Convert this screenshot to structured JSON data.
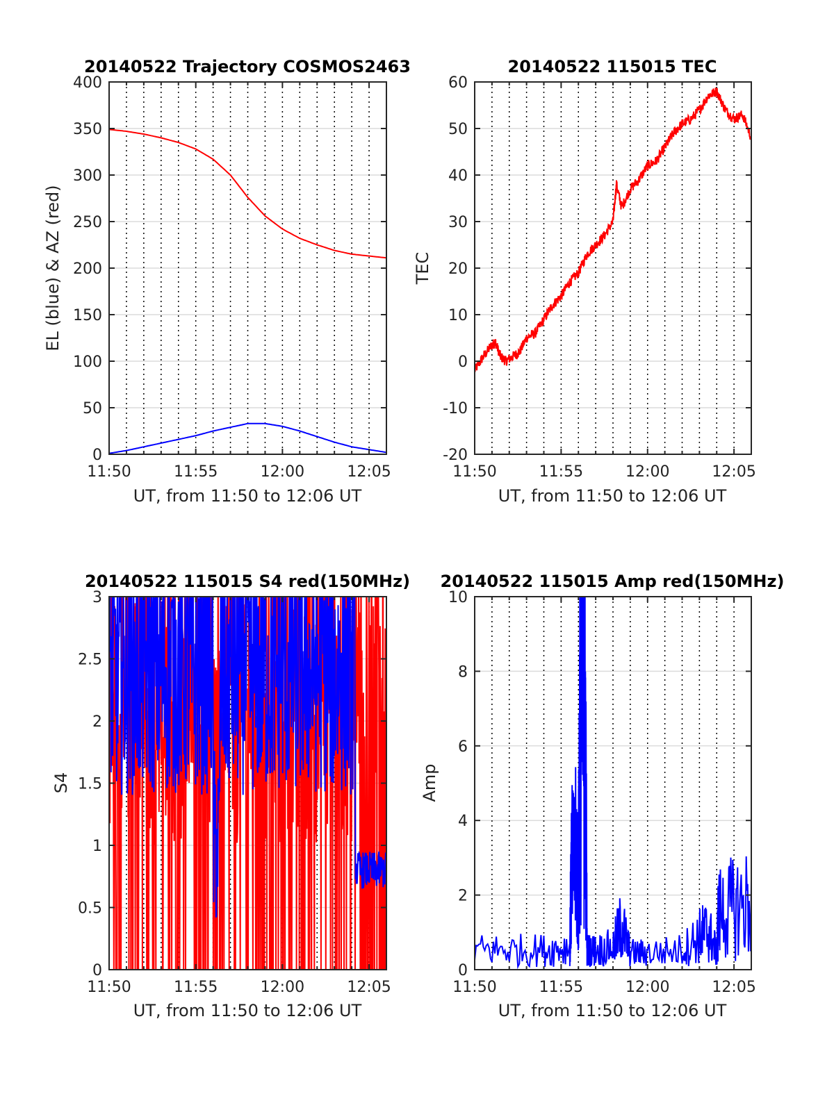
{
  "colors": {
    "red": "#ff0000",
    "blue": "#0000ff",
    "grid": "#dcdcdc",
    "vline": "#000000",
    "axis": "#262626"
  },
  "chart_data": [
    {
      "id": "trajectory",
      "type": "line",
      "title": "20140522 Trajectory COSMOS2463",
      "xlabel": "UT, from 11:50 to 12:06 UT",
      "ylabel": "EL (blue) & AZ (red)",
      "xlim_min": [
        0,
        16
      ],
      "ylim": [
        0,
        400
      ],
      "xticks": [
        0,
        5,
        10,
        15
      ],
      "xtick_labels": [
        "11:50",
        "11:55",
        "12:00",
        "12:05"
      ],
      "yticks": [
        0,
        50,
        100,
        150,
        200,
        250,
        300,
        350,
        400
      ],
      "ytick_labels": [
        "0",
        "50",
        "100",
        "150",
        "200",
        "250",
        "300",
        "350",
        "400"
      ],
      "grid": true,
      "series": [
        {
          "color": "red",
          "x": [
            0,
            1,
            2,
            3,
            4,
            5,
            6,
            7,
            8,
            9,
            10,
            11,
            12,
            13,
            14,
            15,
            16
          ],
          "y": [
            349,
            347,
            344,
            340,
            335,
            328,
            317,
            300,
            276,
            256,
            242,
            232,
            225,
            219,
            215,
            213,
            211
          ]
        },
        {
          "color": "blue",
          "x": [
            0,
            1,
            2,
            3,
            4,
            5,
            6,
            7,
            8,
            8.5,
            9,
            10,
            11,
            12,
            13,
            14,
            15,
            16
          ],
          "y": [
            1,
            4,
            8,
            12,
            16,
            20,
            25,
            29,
            33,
            33,
            33,
            30,
            25,
            19,
            13,
            8,
            5,
            2
          ]
        }
      ]
    },
    {
      "id": "tec",
      "type": "line",
      "title": "20140522 115015 TEC",
      "xlabel": "UT, from 11:50 to 12:06 UT",
      "ylabel": "TEC",
      "xlim_min": [
        0,
        16
      ],
      "ylim": [
        -20,
        60
      ],
      "xticks": [
        0,
        5,
        10,
        15
      ],
      "xtick_labels": [
        "11:50",
        "11:55",
        "12:00",
        "12:05"
      ],
      "yticks": [
        -20,
        -10,
        0,
        10,
        20,
        30,
        40,
        50,
        60
      ],
      "ytick_labels": [
        "-20",
        "-10",
        "0",
        "10",
        "20",
        "30",
        "40",
        "50",
        "60"
      ],
      "grid": true,
      "series": [
        {
          "color": "red",
          "x": [
            0,
            0.5,
            1,
            1.2,
            1.5,
            1.8,
            2.2,
            2.6,
            3,
            3.5,
            4,
            4.5,
            5,
            5.5,
            6,
            6.5,
            7,
            7.5,
            8,
            8.2,
            8.5,
            9,
            9.5,
            10,
            10.5,
            11,
            11.5,
            12,
            12.5,
            13,
            13.5,
            14,
            14.5,
            15,
            15.5,
            16
          ],
          "y": [
            -2,
            1,
            3.5,
            4,
            1,
            0,
            1,
            2,
            5,
            6,
            9,
            12,
            14,
            17,
            19,
            23,
            25,
            27,
            30,
            38,
            33,
            37,
            39,
            42,
            43,
            46,
            49,
            51,
            52,
            54,
            57,
            58,
            54,
            52,
            53,
            48
          ]
        }
      ]
    },
    {
      "id": "s4",
      "type": "line",
      "title": "20140522 115015 S4 red(150MHz)",
      "xlabel": "UT, from 11:50 to 12:06 UT",
      "ylabel": "S4",
      "xlim_min": [
        0,
        16
      ],
      "ylim": [
        0,
        3
      ],
      "xticks": [
        0,
        5,
        10,
        15
      ],
      "xtick_labels": [
        "11:50",
        "11:55",
        "12:00",
        "12:05"
      ],
      "yticks": [
        0,
        0.5,
        1,
        1.5,
        2,
        2.5,
        3
      ],
      "ytick_labels": [
        "0",
        "0.5",
        "1",
        "1.5",
        "2",
        "2.5",
        "3"
      ],
      "grid": true,
      "series": [
        {
          "color": "red",
          "description": "noisy S4, 0 to >3"
        },
        {
          "color": "blue",
          "description": "noisy S4, ~1.3 to >3 until 12:04, then ~0.8"
        }
      ]
    },
    {
      "id": "amp",
      "type": "line",
      "title": "20140522 115015 Amp red(150MHz)",
      "xlabel": "UT, from 11:50 to 12:06 UT",
      "ylabel": "Amp",
      "xlim_min": [
        0,
        16
      ],
      "ylim": [
        0,
        10
      ],
      "xticks": [
        0,
        5,
        10,
        15
      ],
      "xtick_labels": [
        "11:50",
        "11:55",
        "12:00",
        "12:05"
      ],
      "yticks": [
        0,
        2,
        4,
        6,
        8,
        10
      ],
      "ytick_labels": [
        "0",
        "2",
        "4",
        "6",
        "8",
        "10"
      ],
      "grid": true,
      "series": [
        {
          "color": "blue",
          "x": [
            0,
            2,
            4,
            5.5,
            5.6,
            5.9,
            6.0,
            6.1,
            6.3,
            6.4,
            6.5,
            7,
            8,
            8.5,
            9,
            10,
            12,
            13,
            13.5,
            14,
            14.1,
            15,
            16
          ],
          "y": [
            0.7,
            0.7,
            0.7,
            0.8,
            3.5,
            4,
            3,
            9.7,
            9.5,
            8.5,
            0.7,
            0.7,
            0.8,
            1.6,
            0.6,
            0.6,
            0.7,
            1.2,
            1.4,
            0.6,
            2.0,
            2.2,
            2.4
          ]
        }
      ]
    }
  ]
}
